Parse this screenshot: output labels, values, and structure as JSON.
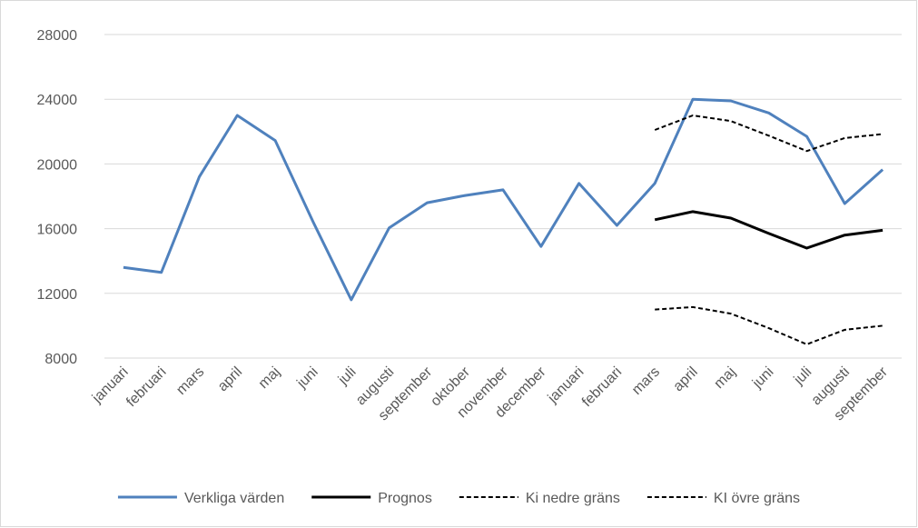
{
  "chart_data": {
    "type": "line",
    "categories": [
      "januari",
      "februari",
      "mars",
      "april",
      "maj",
      "juni",
      "juli",
      "augusti",
      "september",
      "oktober",
      "november",
      "december",
      "januari",
      "februari",
      "mars",
      "april",
      "maj",
      "juni",
      "juli",
      "augusti",
      "september"
    ],
    "series": [
      {
        "name": "Verkliga värden",
        "color": "#4f81bd",
        "line_style": "solid",
        "values": [
          13600,
          13300,
          19200,
          23000,
          21450,
          16400,
          11600,
          16050,
          17600,
          18050,
          18400,
          14900,
          18800,
          16200,
          18800,
          24000,
          23900,
          23150,
          21700,
          17550,
          19650
        ]
      },
      {
        "name": "Prognos",
        "color": "#000000",
        "line_style": "solid",
        "values": [
          null,
          null,
          null,
          null,
          null,
          null,
          null,
          null,
          null,
          null,
          null,
          null,
          null,
          null,
          16550,
          17050,
          16650,
          15700,
          14800,
          15600,
          15900
        ]
      },
      {
        "name": "Ki nedre gräns",
        "color": "#000000",
        "line_style": "dashed",
        "values": [
          null,
          null,
          null,
          null,
          null,
          null,
          null,
          null,
          null,
          null,
          null,
          null,
          null,
          null,
          11000,
          11150,
          10750,
          9850,
          8850,
          9750,
          10000
        ]
      },
      {
        "name": "KI övre gräns",
        "color": "#000000",
        "line_style": "dashed",
        "values": [
          null,
          null,
          null,
          null,
          null,
          null,
          null,
          null,
          null,
          null,
          null,
          null,
          null,
          null,
          22100,
          23000,
          22650,
          21750,
          20800,
          21600,
          21850
        ]
      }
    ],
    "ylim": [
      8000,
      28000
    ],
    "yticks": [
      8000,
      12000,
      16000,
      20000,
      24000,
      28000
    ],
    "grid": true,
    "legend": "bottom"
  }
}
